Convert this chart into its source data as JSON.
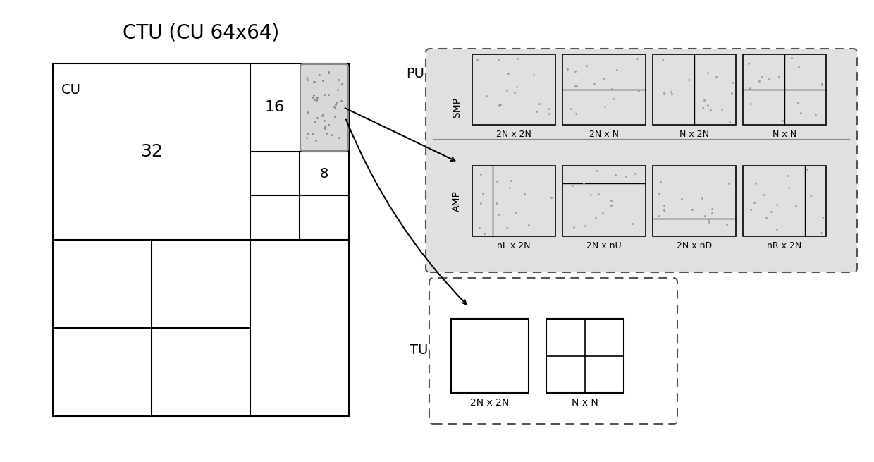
{
  "title": "CTU (CU 64x64)",
  "title_fontsize": 20,
  "bg_color": "#ffffff",
  "label_32": "32",
  "label_16": "16",
  "label_8": "8",
  "label_cu": "CU",
  "label_pu": "PU",
  "label_tu": "TU",
  "label_smp": "SMP",
  "label_amp": "AMP",
  "smp_labels": [
    "2N x 2N",
    "2N x N",
    "N x 2N",
    "N x N"
  ],
  "amp_labels": [
    "nL x 2N",
    "2N x nU",
    "2N x nD",
    "nR x 2N"
  ],
  "tu_labels": [
    "2N x 2N",
    "N x N"
  ],
  "line_color": "#000000",
  "grid_color": "#333333",
  "dot_color": "#aaaaaa",
  "shade_color": "#d8d8d8",
  "pu_bg_color": "#e0e0e0",
  "dashed_color": "#555555"
}
